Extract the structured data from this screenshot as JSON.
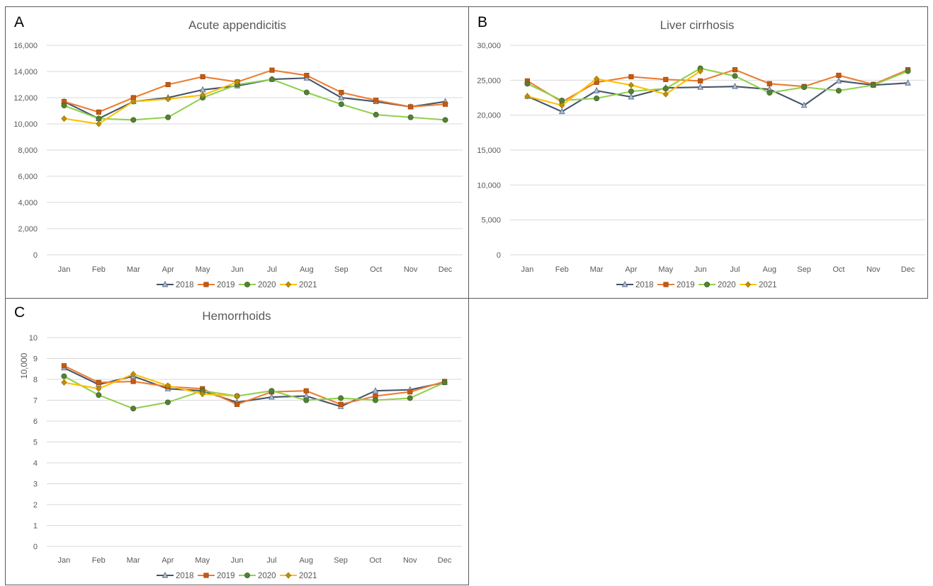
{
  "chart_data": [
    {
      "panel": "A",
      "type": "line",
      "title": "Acute appendicitis",
      "ylabel": "",
      "categories": [
        "Jan",
        "Feb",
        "Mar",
        "Apr",
        "May",
        "Jun",
        "Jul",
        "Aug",
        "Sep",
        "Oct",
        "Nov",
        "Dec"
      ],
      "ylim": [
        0,
        16000
      ],
      "yticks": [
        0,
        2000,
        4000,
        6000,
        8000,
        10000,
        12000,
        14000,
        16000
      ],
      "ytick_labels": [
        "0",
        "2,000",
        "4,000",
        "6,000",
        "8,000",
        "10,000",
        "12,000",
        "14,000",
        "16,000"
      ],
      "grid": true,
      "legend": "bottom",
      "series": [
        {
          "name": "2018",
          "color": "#44546a",
          "marker": "triangle",
          "values": [
            11700,
            10400,
            11700,
            12000,
            12600,
            12900,
            13400,
            13500,
            12000,
            11700,
            11300,
            11700
          ]
        },
        {
          "name": "2019",
          "color": "#ed7d31",
          "marker": "square",
          "values": [
            11700,
            10900,
            12000,
            13000,
            13600,
            13200,
            14100,
            13700,
            12400,
            11800,
            11300,
            11500
          ]
        },
        {
          "name": "2020",
          "color": "#92d050",
          "marker": "circle",
          "values": [
            11400,
            10400,
            10300,
            10500,
            12000,
            13000,
            13400,
            12400,
            11500,
            10700,
            10500,
            10300
          ]
        },
        {
          "name": "2021",
          "color": "#ffc000",
          "marker": "diamond",
          "values": [
            10400,
            10000,
            11700,
            11900,
            12200,
            13200,
            null,
            null,
            null,
            null,
            null,
            null
          ]
        }
      ]
    },
    {
      "panel": "B",
      "type": "line",
      "title": "Liver cirrhosis",
      "ylabel": "",
      "categories": [
        "Jan",
        "Feb",
        "Mar",
        "Apr",
        "May",
        "Jun",
        "Jul",
        "Aug",
        "Sep",
        "Oct",
        "Nov",
        "Dec"
      ],
      "ylim": [
        0,
        30000
      ],
      "yticks": [
        0,
        5000,
        10000,
        15000,
        20000,
        25000,
        30000
      ],
      "ytick_labels": [
        "0",
        "5,000",
        "10,000",
        "15,000",
        "20,000",
        "25,000",
        "30,000"
      ],
      "grid": true,
      "legend": "bottom",
      "series": [
        {
          "name": "2018",
          "color": "#44546a",
          "marker": "triangle",
          "values": [
            22700,
            20500,
            23500,
            22600,
            23900,
            24000,
            24100,
            23700,
            21400,
            24900,
            24300,
            24600
          ]
        },
        {
          "name": "2019",
          "color": "#ed7d31",
          "marker": "square",
          "values": [
            24900,
            21900,
            24700,
            25500,
            25100,
            24900,
            26500,
            24500,
            24100,
            25700,
            24400,
            26500
          ]
        },
        {
          "name": "2020",
          "color": "#92d050",
          "marker": "circle",
          "values": [
            24500,
            22100,
            22400,
            23400,
            23800,
            26700,
            25600,
            23200,
            24000,
            23500,
            24300,
            26300
          ]
        },
        {
          "name": "2021",
          "color": "#ffc000",
          "marker": "diamond",
          "values": [
            22700,
            21400,
            25200,
            24300,
            23000,
            26300,
            null,
            null,
            null,
            null,
            null,
            null
          ]
        }
      ]
    },
    {
      "panel": "C",
      "type": "line",
      "title": "Hemorrhoids",
      "ylabel": "10,000",
      "categories": [
        "Jan",
        "Feb",
        "Mar",
        "Apr",
        "May",
        "Jun",
        "Jul",
        "Aug",
        "Sep",
        "Oct",
        "Nov",
        "Dec"
      ],
      "ylim": [
        0,
        10
      ],
      "yticks": [
        0,
        1,
        2,
        3,
        4,
        5,
        6,
        7,
        8,
        9,
        10
      ],
      "ytick_labels": [
        "0",
        "1",
        "2",
        "3",
        "4",
        "5",
        "6",
        "7",
        "8",
        "9",
        "10"
      ],
      "grid": true,
      "legend": "bottom",
      "series": [
        {
          "name": "2018",
          "color": "#44546a",
          "marker": "triangle",
          "values": [
            8.55,
            7.75,
            8.15,
            7.55,
            7.45,
            6.9,
            7.15,
            7.2,
            6.7,
            7.45,
            7.5,
            7.85
          ]
        },
        {
          "name": "2019",
          "color": "#ed7d31",
          "marker": "square",
          "values": [
            8.65,
            7.85,
            7.9,
            7.65,
            7.55,
            6.8,
            7.4,
            7.45,
            6.8,
            7.2,
            7.4,
            7.9
          ]
        },
        {
          "name": "2020",
          "color": "#92d050",
          "marker": "circle",
          "values": [
            8.15,
            7.25,
            6.6,
            6.9,
            7.45,
            7.2,
            7.45,
            7.0,
            7.1,
            7.0,
            7.1,
            7.85
          ]
        },
        {
          "name": "2021",
          "color": "#ffc000",
          "marker": "diamond",
          "values": [
            7.85,
            7.55,
            8.25,
            7.7,
            7.3,
            7.2,
            null,
            null,
            null,
            null,
            null,
            null
          ]
        }
      ]
    }
  ]
}
